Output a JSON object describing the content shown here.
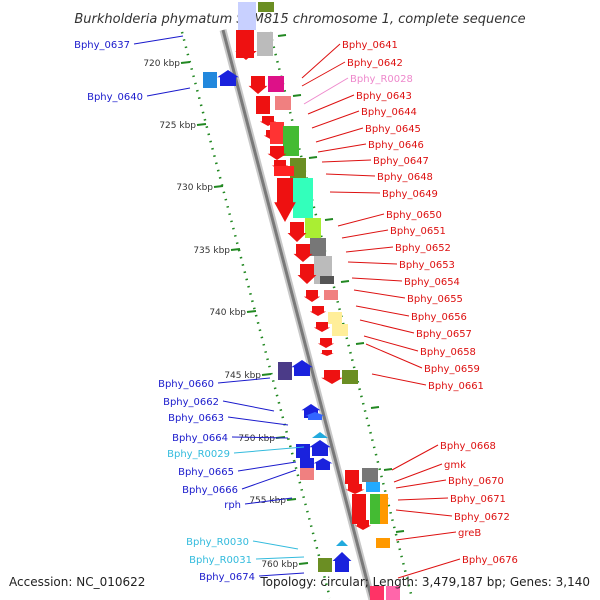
{
  "title": "Burkholderia phymatum STM815 chromosome 1, complete sequence",
  "footer": {
    "accession": "Accession: NC_010622",
    "summary": "Topology: circular; Length: 3,479,187 bp; Genes: 3,140"
  },
  "colors": {
    "left_label": "#1a1acc",
    "left_rna_label": "#33bbdd",
    "right_label": "#dd1111",
    "right_rna_label": "#ee88cc",
    "backbone": "#888888",
    "tick": "#228822"
  },
  "ticks": [
    "720 kbp",
    "725 kbp",
    "730 kbp",
    "735 kbp",
    "740 kbp",
    "745 kbp",
    "750 kbp",
    "755 kbp",
    "760 kbp"
  ],
  "left_labels": [
    {
      "text": "Bphy_0637",
      "type": "gene"
    },
    {
      "text": "Bphy_0640",
      "type": "gene"
    },
    {
      "text": "Bphy_0660",
      "type": "gene"
    },
    {
      "text": "Bphy_0662",
      "type": "gene"
    },
    {
      "text": "Bphy_0663",
      "type": "gene"
    },
    {
      "text": "Bphy_0664",
      "type": "gene"
    },
    {
      "text": "Bphy_R0029",
      "type": "rna"
    },
    {
      "text": "Bphy_0665",
      "type": "gene"
    },
    {
      "text": "Bphy_0666",
      "type": "gene"
    },
    {
      "text": "rph",
      "type": "gene"
    },
    {
      "text": "Bphy_R0030",
      "type": "rna"
    },
    {
      "text": "Bphy_R0031",
      "type": "rna"
    },
    {
      "text": "Bphy_0674",
      "type": "gene"
    }
  ],
  "right_labels": [
    {
      "text": "Bphy_0641",
      "type": "gene"
    },
    {
      "text": "Bphy_0642",
      "type": "gene"
    },
    {
      "text": "Bphy_R0028",
      "type": "rna"
    },
    {
      "text": "Bphy_0643",
      "type": "gene"
    },
    {
      "text": "Bphy_0644",
      "type": "gene"
    },
    {
      "text": "Bphy_0645",
      "type": "gene"
    },
    {
      "text": "Bphy_0646",
      "type": "gene"
    },
    {
      "text": "Bphy_0647",
      "type": "gene"
    },
    {
      "text": "Bphy_0648",
      "type": "gene"
    },
    {
      "text": "Bphy_0649",
      "type": "gene"
    },
    {
      "text": "Bphy_0650",
      "type": "gene"
    },
    {
      "text": "Bphy_0651",
      "type": "gene"
    },
    {
      "text": "Bphy_0652",
      "type": "gene"
    },
    {
      "text": "Bphy_0653",
      "type": "gene"
    },
    {
      "text": "Bphy_0654",
      "type": "gene"
    },
    {
      "text": "Bphy_0655",
      "type": "gene"
    },
    {
      "text": "Bphy_0656",
      "type": "gene"
    },
    {
      "text": "Bphy_0657",
      "type": "gene"
    },
    {
      "text": "Bphy_0658",
      "type": "gene"
    },
    {
      "text": "Bphy_0659",
      "type": "gene"
    },
    {
      "text": "Bphy_0661",
      "type": "gene"
    },
    {
      "text": "Bphy_0668",
      "type": "gene"
    },
    {
      "text": "gmk",
      "type": "gene"
    },
    {
      "text": "Bphy_0670",
      "type": "gene"
    },
    {
      "text": "Bphy_0671",
      "type": "gene"
    },
    {
      "text": "Bphy_0672",
      "type": "gene"
    },
    {
      "text": "greB",
      "type": "gene"
    },
    {
      "text": "Bphy_0676",
      "type": "gene"
    }
  ]
}
